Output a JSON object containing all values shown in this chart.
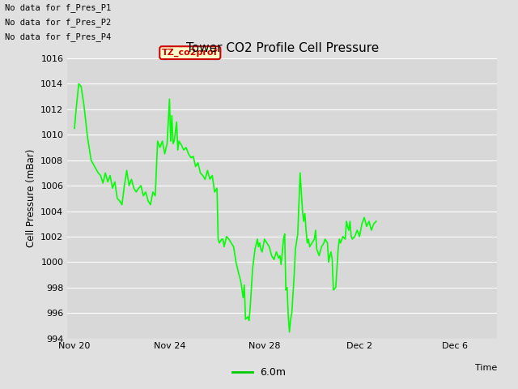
{
  "title": "Tower CO2 Profile Cell Pressure",
  "ylabel": "Cell Pressure (mBar)",
  "xlabel": "Time",
  "ylim": [
    994,
    1016
  ],
  "fig_bg_color": "#e0e0e0",
  "plot_bg_color": "#d8d8d8",
  "line_color": "#00ff00",
  "line_width": 1.2,
  "legend_label": "6.0m",
  "legend_color": "#00cc00",
  "no_data_labels": [
    "No data for f_Pres_P1",
    "No data for f_Pres_P2",
    "No data for f_Pres_P4"
  ],
  "tooltip_label": "TZ_co2prof",
  "tooltip_bg": "#ffffcc",
  "tooltip_border": "#cc0000",
  "x_tick_labels": [
    "Nov 20",
    "Nov 24",
    "Nov 28",
    "Dec 2",
    "Dec 6"
  ],
  "x_tick_positions": [
    0,
    4,
    8,
    12,
    16
  ],
  "x_lim": [
    -0.3,
    17.8
  ],
  "y_ticks": [
    994,
    996,
    998,
    1000,
    1002,
    1004,
    1006,
    1008,
    1010,
    1012,
    1014,
    1016
  ],
  "data_points": [
    [
      0.0,
      1010.5
    ],
    [
      0.08,
      1012.2
    ],
    [
      0.18,
      1014.0
    ],
    [
      0.28,
      1013.8
    ],
    [
      0.4,
      1012.3
    ],
    [
      0.55,
      1009.8
    ],
    [
      0.7,
      1008.0
    ],
    [
      0.85,
      1007.5
    ],
    [
      1.0,
      1007.0
    ],
    [
      1.1,
      1006.8
    ],
    [
      1.2,
      1006.2
    ],
    [
      1.3,
      1007.0
    ],
    [
      1.4,
      1006.3
    ],
    [
      1.5,
      1006.8
    ],
    [
      1.6,
      1005.8
    ],
    [
      1.7,
      1006.3
    ],
    [
      1.8,
      1005.0
    ],
    [
      1.9,
      1004.8
    ],
    [
      2.0,
      1004.5
    ],
    [
      2.1,
      1006.0
    ],
    [
      2.2,
      1007.2
    ],
    [
      2.3,
      1006.0
    ],
    [
      2.4,
      1006.5
    ],
    [
      2.5,
      1005.8
    ],
    [
      2.6,
      1005.5
    ],
    [
      2.7,
      1005.8
    ],
    [
      2.8,
      1006.0
    ],
    [
      2.9,
      1005.2
    ],
    [
      3.0,
      1005.5
    ],
    [
      3.1,
      1004.8
    ],
    [
      3.2,
      1004.5
    ],
    [
      3.3,
      1005.5
    ],
    [
      3.4,
      1005.2
    ],
    [
      3.5,
      1009.5
    ],
    [
      3.6,
      1009.0
    ],
    [
      3.7,
      1009.5
    ],
    [
      3.8,
      1008.5
    ],
    [
      3.9,
      1009.3
    ],
    [
      4.0,
      1012.8
    ],
    [
      4.05,
      1009.5
    ],
    [
      4.1,
      1011.5
    ],
    [
      4.15,
      1009.3
    ],
    [
      4.2,
      1009.5
    ],
    [
      4.3,
      1011.0
    ],
    [
      4.35,
      1008.8
    ],
    [
      4.4,
      1009.5
    ],
    [
      4.5,
      1009.2
    ],
    [
      4.6,
      1008.8
    ],
    [
      4.7,
      1009.0
    ],
    [
      4.8,
      1008.5
    ],
    [
      4.9,
      1008.2
    ],
    [
      5.0,
      1008.3
    ],
    [
      5.1,
      1007.5
    ],
    [
      5.2,
      1007.8
    ],
    [
      5.3,
      1007.0
    ],
    [
      5.4,
      1006.8
    ],
    [
      5.5,
      1006.5
    ],
    [
      5.6,
      1007.2
    ],
    [
      5.7,
      1006.5
    ],
    [
      5.8,
      1006.8
    ],
    [
      5.9,
      1005.5
    ],
    [
      6.0,
      1005.8
    ],
    [
      6.05,
      1001.8
    ],
    [
      6.1,
      1001.5
    ],
    [
      6.2,
      1001.8
    ],
    [
      6.25,
      1001.8
    ],
    [
      6.3,
      1001.2
    ],
    [
      6.4,
      1002.0
    ],
    [
      6.5,
      1001.8
    ],
    [
      6.6,
      1001.5
    ],
    [
      6.7,
      1001.2
    ],
    [
      6.8,
      1000.0
    ],
    [
      6.9,
      999.2
    ],
    [
      7.0,
      998.5
    ],
    [
      7.1,
      997.2
    ],
    [
      7.15,
      998.2
    ],
    [
      7.2,
      995.5
    ],
    [
      7.3,
      995.7
    ],
    [
      7.35,
      995.4
    ],
    [
      7.4,
      996.5
    ],
    [
      7.5,
      999.5
    ],
    [
      7.6,
      1001.0
    ],
    [
      7.7,
      1001.8
    ],
    [
      7.75,
      1001.2
    ],
    [
      7.8,
      1001.5
    ],
    [
      7.85,
      1001.0
    ],
    [
      7.9,
      1000.8
    ],
    [
      8.0,
      1001.8
    ],
    [
      8.1,
      1001.5
    ],
    [
      8.2,
      1001.2
    ],
    [
      8.3,
      1000.5
    ],
    [
      8.4,
      1000.2
    ],
    [
      8.5,
      1000.8
    ],
    [
      8.6,
      1000.3
    ],
    [
      8.65,
      1000.5
    ],
    [
      8.7,
      999.8
    ],
    [
      8.8,
      1001.8
    ],
    [
      8.85,
      1002.2
    ],
    [
      8.9,
      997.8
    ],
    [
      8.95,
      998.0
    ],
    [
      9.0,
      995.8
    ],
    [
      9.05,
      994.5
    ],
    [
      9.1,
      995.5
    ],
    [
      9.15,
      996.0
    ],
    [
      9.2,
      997.5
    ],
    [
      9.25,
      999.0
    ],
    [
      9.3,
      1001.0
    ],
    [
      9.4,
      1002.2
    ],
    [
      9.5,
      1007.0
    ],
    [
      9.6,
      1004.0
    ],
    [
      9.65,
      1003.2
    ],
    [
      9.7,
      1003.8
    ],
    [
      9.75,
      1002.5
    ],
    [
      9.8,
      1001.5
    ],
    [
      9.85,
      1001.8
    ],
    [
      9.9,
      1001.2
    ],
    [
      10.0,
      1001.5
    ],
    [
      10.1,
      1001.8
    ],
    [
      10.15,
      1002.5
    ],
    [
      10.2,
      1001.0
    ],
    [
      10.3,
      1000.5
    ],
    [
      10.4,
      1001.2
    ],
    [
      10.5,
      1001.5
    ],
    [
      10.55,
      1001.8
    ],
    [
      10.65,
      1001.5
    ],
    [
      10.7,
      1000.0
    ],
    [
      10.75,
      1000.5
    ],
    [
      10.8,
      1000.8
    ],
    [
      10.85,
      1000.2
    ],
    [
      10.9,
      997.8
    ],
    [
      11.0,
      998.0
    ],
    [
      11.05,
      999.5
    ],
    [
      11.1,
      1001.0
    ],
    [
      11.15,
      1001.8
    ],
    [
      11.2,
      1001.5
    ],
    [
      11.3,
      1002.0
    ],
    [
      11.4,
      1001.8
    ],
    [
      11.45,
      1003.2
    ],
    [
      11.5,
      1002.8
    ],
    [
      11.55,
      1002.5
    ],
    [
      11.6,
      1003.2
    ],
    [
      11.65,
      1002.0
    ],
    [
      11.7,
      1001.8
    ],
    [
      11.8,
      1002.0
    ],
    [
      11.9,
      1002.5
    ],
    [
      12.0,
      1002.0
    ],
    [
      12.1,
      1003.0
    ],
    [
      12.2,
      1003.5
    ],
    [
      12.3,
      1002.8
    ],
    [
      12.4,
      1003.2
    ],
    [
      12.5,
      1002.5
    ],
    [
      12.6,
      1003.0
    ],
    [
      12.7,
      1003.2
    ]
  ]
}
